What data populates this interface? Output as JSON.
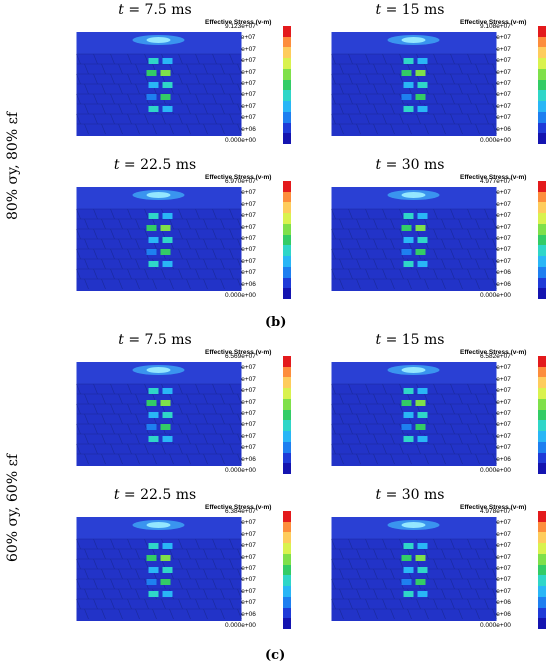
{
  "colorbar_colors": [
    "#e31a1c",
    "#fd8d3c",
    "#fecc5c",
    "#d9f24e",
    "#7fe04a",
    "#33cc66",
    "#2fd6c8",
    "#29b6f6",
    "#1e7ff0",
    "#1f3bd8",
    "#1414b0"
  ],
  "slab_color": "#2233c8",
  "panels_b": [
    {
      "time": "7.5 ms",
      "legend_title": "Effective Stress (v-m)",
      "ticks": [
        "9.123e+07",
        "8.211e+07",
        "7.299e+07",
        "6.386e+07",
        "5.474e+07",
        "4.562e+07",
        "3.649e+07",
        "2.737e+07",
        "1.825e+07",
        "9.123e+06",
        "0.000e+00"
      ]
    },
    {
      "time": "15 ms",
      "legend_title": "Effective Stress (v-m)",
      "ticks": [
        "9.108e+07",
        "8.197e+07",
        "7.286e+07",
        "6.376e+07",
        "5.465e+07",
        "4.554e+07",
        "3.643e+07",
        "2.732e+07",
        "1.822e+07",
        "9.108e+06",
        "0.000e+00"
      ]
    },
    {
      "time": "22.5 ms",
      "legend_title": "Effective Stress (v-m)",
      "ticks": [
        "6.970e+07",
        "6.273e+07",
        "5.576e+07",
        "4.879e+07",
        "4.182e+07",
        "3.485e+07",
        "2.788e+07",
        "2.091e+07",
        "1.394e+07",
        "6.970e+06",
        "0.000e+00"
      ]
    },
    {
      "time": "30 ms",
      "legend_title": "Effective Stress (v-m)",
      "ticks": [
        "4.977e+07",
        "4.479e+07",
        "3.982e+07",
        "3.484e+07",
        "2.986e+07",
        "2.489e+07",
        "1.991e+07",
        "1.493e+07",
        "9.954e+06",
        "4.977e+06",
        "0.000e+00"
      ]
    }
  ],
  "panels_c": [
    {
      "time": "7.5 ms",
      "legend_title": "Effective Stress (v-m)",
      "ticks": [
        "6.569e+07",
        "5.912e+07",
        "5.255e+07",
        "4.598e+07",
        "3.941e+07",
        "3.285e+07",
        "2.628e+07",
        "1.971e+07",
        "1.314e+07",
        "6.569e+06",
        "0.000e+00"
      ]
    },
    {
      "time": "15 ms",
      "legend_title": "Effective Stress (v-m)",
      "ticks": [
        "6.582e+07",
        "5.924e+07",
        "5.266e+07",
        "4.608e+07",
        "3.949e+07",
        "3.291e+07",
        "2.633e+07",
        "1.975e+07",
        "1.316e+07",
        "6.582e+06",
        "0.000e+00"
      ]
    },
    {
      "time": "22.5 ms",
      "legend_title": "Effective Stress (v-m)",
      "ticks": [
        "6.384e+07",
        "5.746e+07",
        "5.107e+07",
        "4.469e+07",
        "3.830e+07",
        "3.192e+07",
        "2.554e+07",
        "1.915e+07",
        "1.277e+07",
        "6.384e+06",
        "0.000e+00"
      ]
    },
    {
      "time": "30 ms",
      "legend_title": "Effective Stress (v-m)",
      "ticks": [
        "4.978e+07",
        "4.480e+07",
        "3.982e+07",
        "3.485e+07",
        "2.987e+07",
        "2.489e+07",
        "1.991e+07",
        "1.493e+07",
        "9.956e+06",
        "4.978e+06",
        "0.000e+00"
      ]
    }
  ],
  "time_prefix": "t = ",
  "row_label_b": "80% σy, 80% εf",
  "row_label_c": "60% σy, 60% εf",
  "sub_label_b": "(b)",
  "sub_label_c": "(c)"
}
